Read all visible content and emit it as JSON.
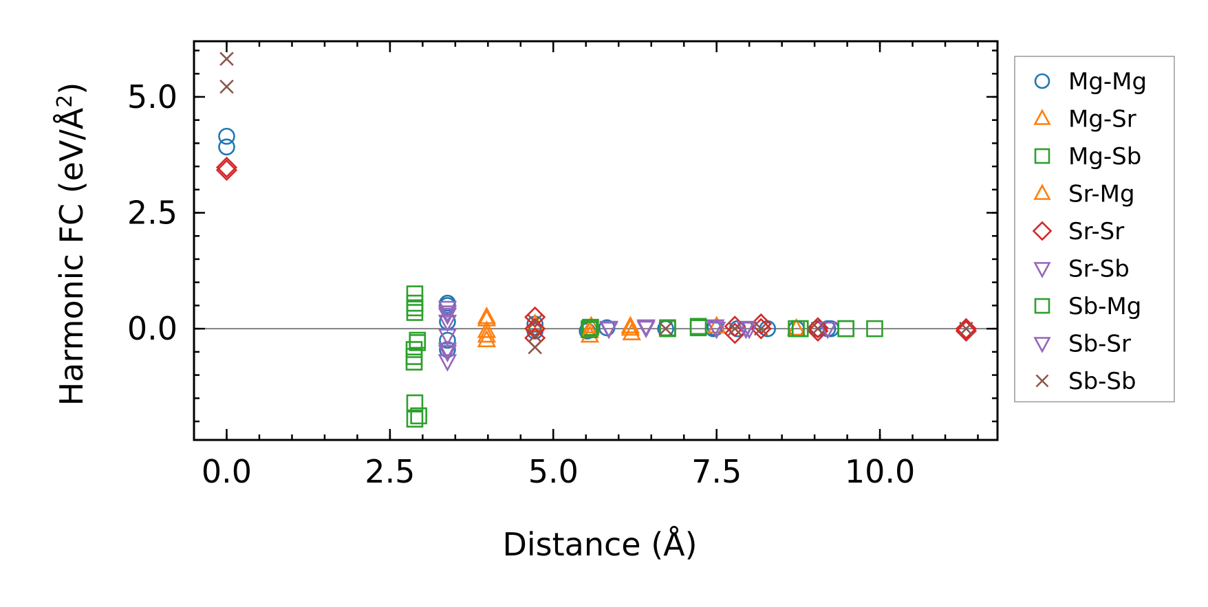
{
  "chart_data": {
    "type": "scatter",
    "xlabel": "Distance (Å)",
    "ylabel_main": "Harmonic FC (eV/Å",
    "ylabel_sup": "2",
    "ylabel_close": ")",
    "xlim": [
      -0.5,
      11.8
    ],
    "ylim": [
      -2.4,
      6.2
    ],
    "xticks": [
      0,
      2.5,
      5,
      7.5,
      10
    ],
    "xtick_labels": [
      "0.0",
      "2.5",
      "5.0",
      "7.5",
      "10.0"
    ],
    "xminor_step": 0.5,
    "yticks": [
      0,
      2.5,
      5
    ],
    "ytick_labels": [
      "0.0",
      "2.5",
      "5.0"
    ],
    "yminor_step": 0.5,
    "zero_line": true,
    "legend_position": "right, outside",
    "series": [
      {
        "name": "Mg-Mg",
        "marker": "circle",
        "color": "#1f77b4",
        "x": [
          0,
          0,
          3.38,
          3.38,
          3.38,
          3.38,
          3.38,
          4.72,
          4.72,
          5.52,
          5.82,
          6.72,
          7.45,
          7.48,
          7.82,
          8.28,
          8.72,
          9.05,
          9.2,
          9.25
        ],
        "y": [
          4.15,
          3.92,
          0.55,
          0.5,
          0.15,
          -0.25,
          -0.45,
          0.1,
          -0.05,
          -0.05,
          0.02,
          0.0,
          0.0,
          0.02,
          0.0,
          0.0,
          0.0,
          0.0,
          0.0,
          0.0
        ]
      },
      {
        "name": "Mg-Sr",
        "marker": "triangle-up",
        "color": "#ff7f0e",
        "x": [
          3.98,
          3.98,
          3.98,
          4.72,
          5.56,
          5.58,
          6.18,
          6.2,
          7.5,
          8.72
        ],
        "y": [
          0.25,
          -0.05,
          -0.25,
          0.1,
          -0.15,
          0.05,
          0.05,
          -0.1,
          0.05,
          0.0
        ]
      },
      {
        "name": "Mg-Sb",
        "marker": "square",
        "color": "#2ca02c",
        "x": [
          2.88,
          2.88,
          2.88,
          2.92,
          2.87,
          2.87,
          2.87,
          2.88,
          2.94,
          2.88,
          5.55,
          5.57,
          6.75,
          7.22,
          8.72,
          8.78,
          9.48,
          9.92
        ],
        "y": [
          0.75,
          0.55,
          0.35,
          -0.25,
          -0.45,
          -0.6,
          -0.72,
          -1.6,
          -1.88,
          -1.95,
          0.0,
          0.03,
          0.0,
          0.05,
          0.0,
          0.0,
          0.0,
          0.0
        ]
      },
      {
        "name": "Sr-Mg",
        "marker": "triangle-up",
        "color": "#ff7f0e",
        "x": [
          3.98,
          3.98,
          5.56,
          6.18
        ],
        "y": [
          0.2,
          -0.15,
          -0.05,
          0.0
        ]
      },
      {
        "name": "Sr-Sr",
        "marker": "diamond",
        "color": "#d62728",
        "x": [
          0,
          0,
          4.72,
          4.72,
          4.72,
          7.78,
          7.78,
          8.18,
          8.18,
          9.05,
          9.05,
          11.32,
          11.32
        ],
        "y": [
          3.48,
          3.42,
          0.25,
          0.0,
          -0.2,
          0.05,
          -0.1,
          0.1,
          0.0,
          0.02,
          -0.05,
          0.0,
          -0.05
        ]
      },
      {
        "name": "Sr-Sb",
        "marker": "triangle-down",
        "color": "#9467bd",
        "x": [
          3.38,
          3.38,
          3.38,
          3.38,
          3.38,
          3.38,
          5.85,
          6.42,
          7.48,
          7.5,
          7.95,
          8.0,
          9.2
        ],
        "y": [
          0.45,
          0.3,
          0.15,
          -0.15,
          -0.45,
          -0.7,
          0.02,
          0.05,
          0.05,
          0.0,
          0.02,
          0.0,
          0.0
        ]
      },
      {
        "name": "Sb-Mg",
        "marker": "square",
        "color": "#2ca02c",
        "x": [
          2.88,
          2.92,
          5.55,
          6.75,
          7.22,
          8.78,
          9.48
        ],
        "y": [
          0.45,
          -0.3,
          -0.02,
          0.02,
          0.02,
          0.0,
          0.0
        ]
      },
      {
        "name": "Sb-Sr",
        "marker": "triangle-down",
        "color": "#9467bd",
        "x": [
          3.38,
          3.38,
          5.85,
          6.42,
          7.95
        ],
        "y": [
          0.35,
          -0.5,
          0.0,
          0.02,
          0.0
        ]
      },
      {
        "name": "Sb-Sb",
        "marker": "x",
        "color": "#8c564b",
        "x": [
          0,
          0,
          4.72,
          4.72,
          4.72,
          6.72,
          7.78,
          8.18,
          9.05,
          11.32
        ],
        "y": [
          5.82,
          5.22,
          0.15,
          -0.15,
          -0.4,
          0.0,
          0.0,
          0.0,
          0.0,
          0.0
        ]
      }
    ]
  }
}
